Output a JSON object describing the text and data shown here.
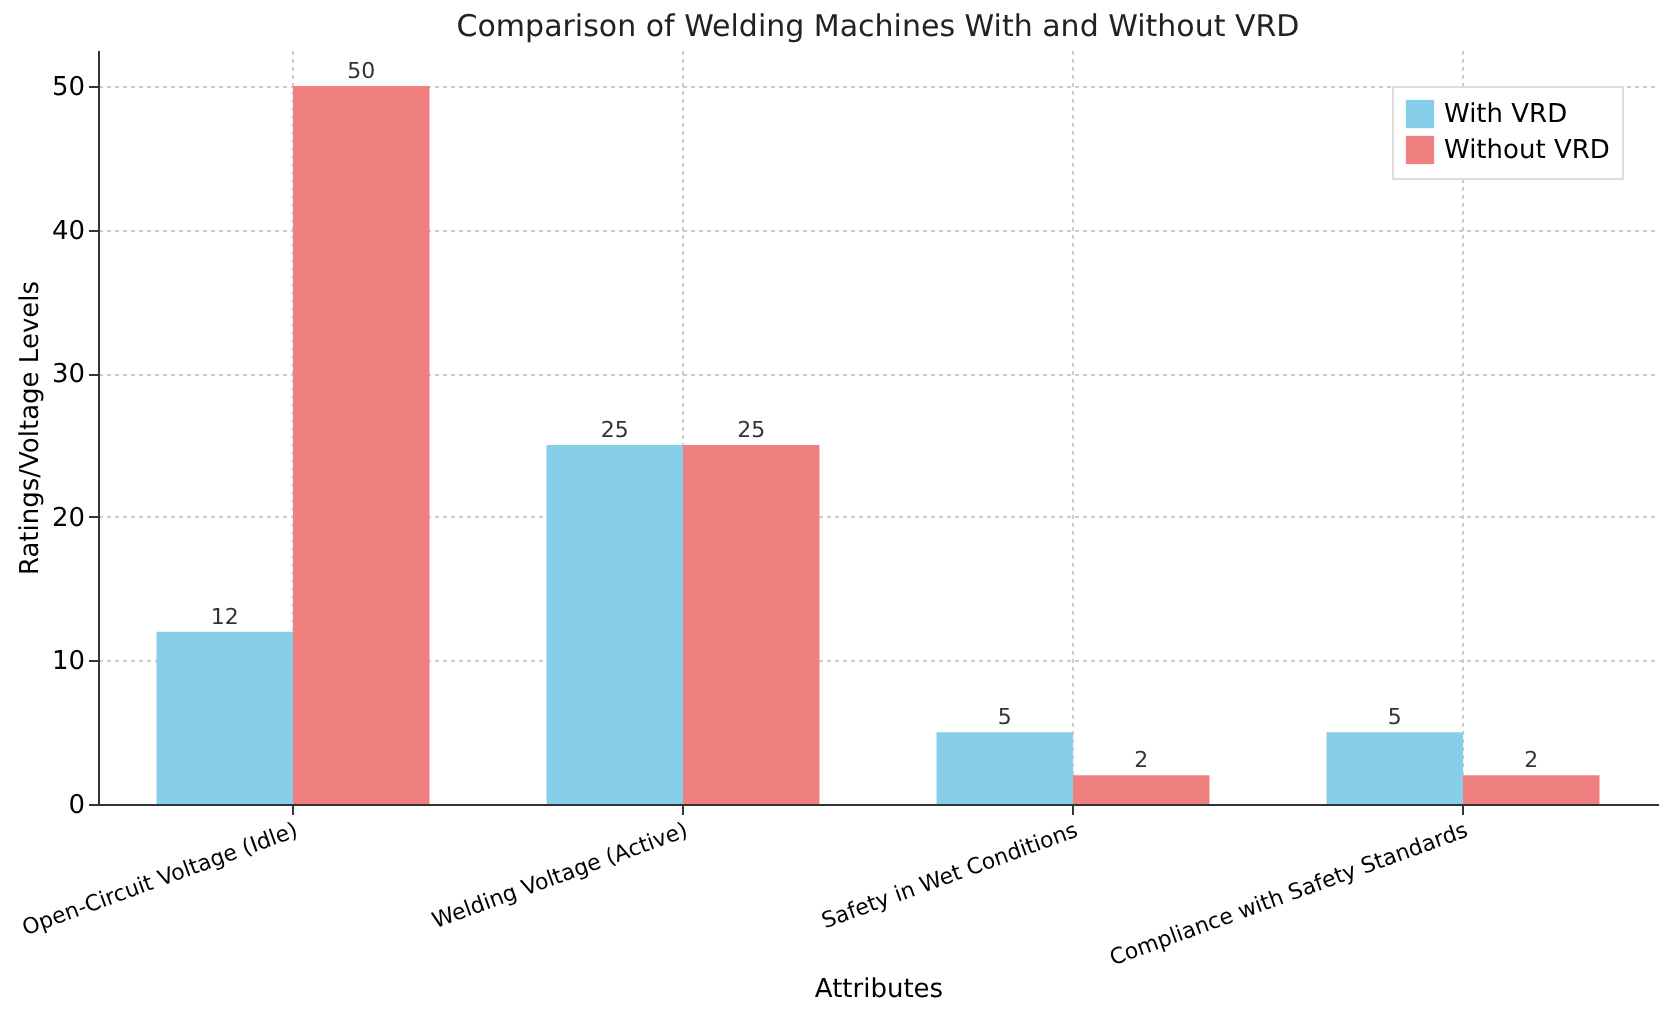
{
  "chart_data": {
    "type": "bar",
    "title": "Comparison of Welding Machines With and Without VRD",
    "xlabel": "Attributes",
    "ylabel": "Ratings/Voltage Levels",
    "categories": [
      "Open-Circuit Voltage (Idle)",
      "Welding Voltage (Active)",
      "Safety in Wet Conditions",
      "Compliance with Safety Standards"
    ],
    "series": [
      {
        "name": "With VRD",
        "color": "#87ceeb",
        "values": [
          12,
          25,
          5,
          5
        ]
      },
      {
        "name": "Without VRD",
        "color": "#f08080",
        "values": [
          50,
          25,
          2,
          2
        ]
      }
    ],
    "ylim": [
      0,
      52.5
    ],
    "yticks": [
      0,
      10,
      20,
      30,
      40,
      50
    ],
    "grid": true,
    "legend": "top right",
    "data_labels": true
  }
}
